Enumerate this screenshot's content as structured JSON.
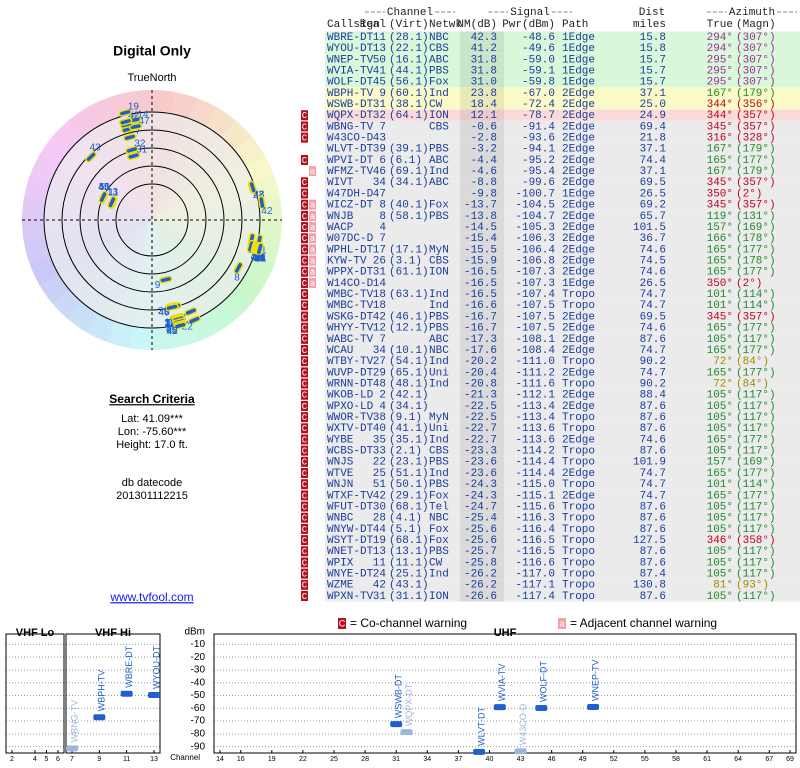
{
  "side": {
    "title": "Digital Only",
    "north": "TrueNorth",
    "criteria_title": "Search Criteria",
    "lat": "Lat: 41.09***",
    "lon": "Lon: -75.60***",
    "height": "Height: 17.0 ft.",
    "datecode_label": "db datecode",
    "datecode": "201301112215",
    "link": "www.tvfool.com"
  },
  "table": {
    "groups": {
      "channel": "Channel",
      "signal": "Signal",
      "dist": "Dist",
      "azimuth": "Azimuth"
    },
    "columns": {
      "callsign": "Callsign",
      "real": "Real",
      "virt": "(Virt)",
      "netwk": "Netwk",
      "nm": "NM(dB)",
      "pwr": "Pwr(dBm)",
      "path": "Path",
      "dist": "miles",
      "true": "True",
      "magn": "(Magn)"
    },
    "rows": [
      {
        "callsign": "WBRE-DT",
        "real": "11",
        "virt": "(28.1)",
        "netwk": "NBC",
        "nm": "42.3",
        "pwr": "-48.6",
        "path": "1Edge",
        "dist": "15.8",
        "true": "294°",
        "magn": "(307°)",
        "color": "#d9f7d9"
      },
      {
        "callsign": "WYOU-DT",
        "real": "13",
        "virt": "(22.1)",
        "netwk": "CBS",
        "nm": "41.2",
        "pwr": "-49.6",
        "path": "1Edge",
        "dist": "15.8",
        "true": "294°",
        "magn": "(307°)",
        "color": "#d9f7d9"
      },
      {
        "callsign": "WNEP-TV",
        "real": "50",
        "virt": "(16.1)",
        "netwk": "ABC",
        "nm": "31.8",
        "pwr": "-59.0",
        "path": "1Edge",
        "dist": "15.7",
        "true": "295°",
        "magn": "(307°)",
        "color": "#d9f7d9"
      },
      {
        "callsign": "WVIA-TV",
        "real": "41",
        "virt": "(44.1)",
        "netwk": "PBS",
        "nm": "31.8",
        "pwr": "-59.1",
        "path": "1Edge",
        "dist": "15.7",
        "true": "295°",
        "magn": "(307°)",
        "color": "#d9f7d9"
      },
      {
        "callsign": "WOLF-DT",
        "real": "45",
        "virt": "(56.1)",
        "netwk": "Fox",
        "nm": "31.0",
        "pwr": "-59.8",
        "path": "1Edge",
        "dist": "15.7",
        "true": "295°",
        "magn": "(307°)",
        "color": "#d9f7d9"
      },
      {
        "callsign": "WBPH-TV",
        "real": "9",
        "virt": "(60.1)",
        "netwk": "Ind",
        "nm": "23.8",
        "pwr": "-67.0",
        "path": "2Edge",
        "dist": "37.1",
        "true": "167°",
        "magn": "(179°)",
        "color": "#fafac8"
      },
      {
        "callsign": "WSWB-DT",
        "real": "31",
        "virt": "(38.1)",
        "netwk": "CW",
        "nm": "18.4",
        "pwr": "-72.4",
        "path": "2Edge",
        "dist": "25.0",
        "true": "344°",
        "magn": "(356°)",
        "color": "#fafac8"
      },
      {
        "warn": [
          "C"
        ],
        "callsign": "WQPX-DT",
        "real": "32",
        "virt": "(64.1)",
        "netwk": "ION",
        "nm": "12.1",
        "pwr": "-78.7",
        "path": "2Edge",
        "dist": "24.9",
        "true": "344°",
        "magn": "(357°)",
        "color": "#fbdada"
      },
      {
        "warn": [
          "C"
        ],
        "callsign": "WBNG-TV",
        "real": "7",
        "netwk": "CBS",
        "nm": "-0.6",
        "pwr": "-91.4",
        "path": "2Edge",
        "dist": "69.4",
        "true": "345°",
        "magn": "(357°)",
        "color": "#ebebeb"
      },
      {
        "warn": [
          "C"
        ],
        "callsign": "W43CO-D",
        "real": "43",
        "nm": "-2.8",
        "pwr": "-93.6",
        "path": "2Edge",
        "dist": "21.8",
        "true": "316°",
        "magn": "(328°)",
        "color": "#ebebeb"
      },
      {
        "callsign": "WLVT-DT",
        "real": "39",
        "virt": "(39.1)",
        "netwk": "PBS",
        "nm": "-3.2",
        "pwr": "-94.1",
        "path": "2Edge",
        "dist": "37.1",
        "true": "167°",
        "magn": "(179°)",
        "color": "#ebebeb"
      },
      {
        "warn": [
          "C"
        ],
        "callsign": "WPVI-DT",
        "real": "6",
        "virt": "(6.1)",
        "netwk": "ABC",
        "nm": "-4.4",
        "pwr": "-95.2",
        "path": "2Edge",
        "dist": "74.4",
        "true": "165°",
        "magn": "(177°)",
        "color": "#ebebeb"
      },
      {
        "warn": [
          "a"
        ],
        "callsign": "WFMZ-TV",
        "real": "46",
        "virt": "(69.1)",
        "netwk": "Ind",
        "nm": "-4.6",
        "pwr": "-95.4",
        "path": "2Edge",
        "dist": "37.1",
        "true": "167°",
        "magn": "(179°)",
        "color": "#ebebeb"
      },
      {
        "warn": [
          "C"
        ],
        "callsign": "WIVT",
        "real": "34",
        "virt": "(34.1)",
        "netwk": "ABC",
        "nm": "-8.8",
        "pwr": "-99.6",
        "path": "2Edge",
        "dist": "69.5",
        "true": "345°",
        "magn": "(357°)",
        "color": "#ebebeb"
      },
      {
        "warn": [
          "C"
        ],
        "callsign": "W47DH-D",
        "real": "47",
        "nm": "-9.8",
        "pwr": "-100.7",
        "path": "1Edge",
        "dist": "26.5",
        "true": "350°",
        "magn": "(2°)",
        "color": "#ebebeb"
      },
      {
        "warn": [
          "C",
          "a"
        ],
        "callsign": "WICZ-DT",
        "real": "8",
        "virt": "(40.1)",
        "netwk": "Fox",
        "nm": "-13.7",
        "pwr": "-104.5",
        "path": "2Edge",
        "dist": "69.2",
        "true": "345°",
        "magn": "(357°)",
        "color": "#ebebeb"
      },
      {
        "warn": [
          "C",
          "a"
        ],
        "callsign": "WNJB",
        "real": "8",
        "virt": "(58.1)",
        "netwk": "PBS",
        "nm": "-13.8",
        "pwr": "-104.7",
        "path": "2Edge",
        "dist": "65.7",
        "true": "119°",
        "magn": "(131°)",
        "color": "#ebebeb"
      },
      {
        "warn": [
          "C",
          "a"
        ],
        "callsign": "WACP",
        "real": "4",
        "nm": "-14.5",
        "pwr": "-105.3",
        "path": "2Edge",
        "dist": "101.5",
        "true": "157°",
        "magn": "(169°)",
        "color": "#ebebeb"
      },
      {
        "warn": [
          "C",
          "a"
        ],
        "callsign": "W07DC-D",
        "real": "7",
        "nm": "-15.4",
        "pwr": "-106.3",
        "path": "2Edge",
        "dist": "36.7",
        "true": "166°",
        "magn": "(178°)",
        "color": "#ebebeb"
      },
      {
        "warn": [
          "C",
          "a"
        ],
        "callsign": "WPHL-DT",
        "real": "17",
        "virt": "(17.1)",
        "netwk": "MyN",
        "nm": "-15.5",
        "pwr": "-106.4",
        "path": "2Edge",
        "dist": "74.6",
        "true": "165°",
        "magn": "(177°)",
        "color": "#ebebeb"
      },
      {
        "warn": [
          "C",
          "a"
        ],
        "callsign": "KYW-TV",
        "real": "26",
        "virt": "(3.1)",
        "netwk": "CBS",
        "nm": "-15.9",
        "pwr": "-106.8",
        "path": "2Edge",
        "dist": "74.5",
        "true": "165°",
        "magn": "(178°)",
        "color": "#ebebeb"
      },
      {
        "warn": [
          "C",
          "a"
        ],
        "callsign": "WPPX-DT",
        "real": "31",
        "virt": "(61.1)",
        "netwk": "ION",
        "nm": "-16.5",
        "pwr": "-107.3",
        "path": "2Edge",
        "dist": "74.6",
        "true": "165°",
        "magn": "(177°)",
        "color": "#ebebeb"
      },
      {
        "warn": [
          "C",
          "a"
        ],
        "callsign": "W14CO-D",
        "real": "14",
        "nm": "-16.5",
        "pwr": "-107.3",
        "path": "1Edge",
        "dist": "26.5",
        "true": "350°",
        "magn": "(2°)",
        "color": "#ebebeb"
      },
      {
        "warn": [
          "C"
        ],
        "callsign": "WMBC-TV",
        "real": "18",
        "virt": "(63.1)",
        "netwk": "Ind",
        "nm": "-16.5",
        "pwr": "-107.4",
        "path": "Tropo",
        "dist": "74.7",
        "true": "101°",
        "magn": "(114°)",
        "color": "#ebebeb"
      },
      {
        "warn": [
          "C"
        ],
        "callsign": "WMBC-TV",
        "real": "18",
        "netwk": "Ind",
        "nm": "-16.6",
        "pwr": "-107.5",
        "path": "Tropo",
        "dist": "74.7",
        "true": "101°",
        "magn": "(114°)",
        "color": "#ebebeb"
      },
      {
        "warn": [
          "C"
        ],
        "callsign": "WSKG-DT",
        "real": "42",
        "virt": "(46.1)",
        "netwk": "PBS",
        "nm": "-16.7",
        "pwr": "-107.5",
        "path": "2Edge",
        "dist": "69.5",
        "true": "345°",
        "magn": "(357°)",
        "color": "#ebebeb"
      },
      {
        "warn": [
          "C"
        ],
        "callsign": "WHYY-TV",
        "real": "12",
        "virt": "(12.1)",
        "netwk": "PBS",
        "nm": "-16.7",
        "pwr": "-107.5",
        "path": "2Edge",
        "dist": "74.6",
        "true": "165°",
        "magn": "(177°)",
        "color": "#ebebeb"
      },
      {
        "warn": [
          "C"
        ],
        "callsign": "WABC-TV",
        "real": "7",
        "netwk": "ABC",
        "nm": "-17.3",
        "pwr": "-108.1",
        "path": "2Edge",
        "dist": "87.6",
        "true": "105°",
        "magn": "(117°)",
        "color": "#ebebeb"
      },
      {
        "warn": [
          "C"
        ],
        "callsign": "WCAU",
        "real": "34",
        "virt": "(10.1)",
        "netwk": "NBC",
        "nm": "-17.6",
        "pwr": "-108.4",
        "path": "2Edge",
        "dist": "74.7",
        "true": "165°",
        "magn": "(177°)",
        "color": "#ebebeb"
      },
      {
        "warn": [
          "C"
        ],
        "callsign": "WTBY-TV",
        "real": "27",
        "virt": "(54.1)",
        "netwk": "Ind",
        "nm": "-20.2",
        "pwr": "-111.0",
        "path": "Tropo",
        "dist": "90.2",
        "true": "72°",
        "magn": "(84°)",
        "color": "#ebebeb"
      },
      {
        "warn": [
          "C"
        ],
        "callsign": "WUVP-DT",
        "real": "29",
        "virt": "(65.1)",
        "netwk": "Uni",
        "nm": "-20.4",
        "pwr": "-111.2",
        "path": "2Edge",
        "dist": "74.7",
        "true": "165°",
        "magn": "(177°)",
        "color": "#ebebeb"
      },
      {
        "warn": [
          "C"
        ],
        "callsign": "WRNN-DT",
        "real": "48",
        "virt": "(48.1)",
        "netwk": "Ind",
        "nm": "-20.8",
        "pwr": "-111.6",
        "path": "Tropo",
        "dist": "90.2",
        "true": "72°",
        "magn": "(84°)",
        "color": "#ebebeb"
      },
      {
        "warn": [
          "C"
        ],
        "callsign": "WKOB-LD",
        "real": "2",
        "virt": "(42.1)",
        "nm": "-21.3",
        "pwr": "-112.1",
        "path": "2Edge",
        "dist": "88.4",
        "true": "105°",
        "magn": "(117°)",
        "color": "#ebebeb"
      },
      {
        "warn": [
          "C"
        ],
        "callsign": "WPXO-LD",
        "real": "4",
        "virt": "(34.1)",
        "nm": "-22.5",
        "pwr": "-113.4",
        "path": "2Edge",
        "dist": "87.6",
        "true": "105°",
        "magn": "(117°)",
        "color": "#ebebeb"
      },
      {
        "warn": [
          "C"
        ],
        "callsign": "WWOR-TV",
        "real": "38",
        "virt": "(9.1)",
        "netwk": "MyN",
        "nm": "-22.5",
        "pwr": "-113.4",
        "path": "Tropo",
        "dist": "87.6",
        "true": "105°",
        "magn": "(117°)",
        "color": "#ebebeb"
      },
      {
        "warn": [
          "C"
        ],
        "callsign": "WXTV-DT",
        "real": "40",
        "virt": "(41.1)",
        "netwk": "Uni",
        "nm": "-22.7",
        "pwr": "-113.6",
        "path": "Tropo",
        "dist": "87.6",
        "true": "105°",
        "magn": "(117°)",
        "color": "#ebebeb"
      },
      {
        "warn": [
          "C"
        ],
        "callsign": "WYBE",
        "real": "35",
        "virt": "(35.1)",
        "netwk": "Ind",
        "nm": "-22.7",
        "pwr": "-113.6",
        "path": "2Edge",
        "dist": "74.6",
        "true": "165°",
        "magn": "(177°)",
        "color": "#ebebeb"
      },
      {
        "warn": [
          "C"
        ],
        "callsign": "WCBS-DT",
        "real": "33",
        "virt": "(2.1)",
        "netwk": "CBS",
        "nm": "-23.3",
        "pwr": "-114.2",
        "path": "Tropo",
        "dist": "87.6",
        "true": "105°",
        "magn": "(117°)",
        "color": "#ebebeb"
      },
      {
        "warn": [
          "C"
        ],
        "callsign": "WNJS",
        "real": "22",
        "virt": "(23.1)",
        "netwk": "PBS",
        "nm": "-23.6",
        "pwr": "-114.4",
        "path": "Tropo",
        "dist": "101.9",
        "true": "157°",
        "magn": "(169°)",
        "color": "#ebebeb"
      },
      {
        "warn": [
          "C"
        ],
        "callsign": "WTVE",
        "real": "25",
        "virt": "(51.1)",
        "netwk": "Ind",
        "nm": "-23.6",
        "pwr": "-114.4",
        "path": "2Edge",
        "dist": "74.7",
        "true": "165°",
        "magn": "(177°)",
        "color": "#ebebeb"
      },
      {
        "warn": [
          "C"
        ],
        "callsign": "WNJN",
        "real": "51",
        "virt": "(50.1)",
        "netwk": "PBS",
        "nm": "-24.3",
        "pwr": "-115.0",
        "path": "Tropo",
        "dist": "74.7",
        "true": "101°",
        "magn": "(114°)",
        "color": "#ebebeb"
      },
      {
        "warn": [
          "C"
        ],
        "callsign": "WTXF-TV",
        "real": "42",
        "virt": "(29.1)",
        "netwk": "Fox",
        "nm": "-24.3",
        "pwr": "-115.1",
        "path": "2Edge",
        "dist": "74.7",
        "true": "165°",
        "magn": "(177°)",
        "color": "#ebebeb"
      },
      {
        "warn": [
          "C"
        ],
        "callsign": "WFUT-DT",
        "real": "30",
        "virt": "(68.1)",
        "netwk": "Tel",
        "nm": "-24.7",
        "pwr": "-115.6",
        "path": "Tropo",
        "dist": "87.6",
        "true": "105°",
        "magn": "(117°)",
        "color": "#ebebeb"
      },
      {
        "warn": [
          "C"
        ],
        "callsign": "WNBC",
        "real": "28",
        "virt": "(4.1)",
        "netwk": "NBC",
        "nm": "-25.4",
        "pwr": "-116.3",
        "path": "Tropo",
        "dist": "87.6",
        "true": "105°",
        "magn": "(117°)",
        "color": "#ebebeb"
      },
      {
        "warn": [
          "C"
        ],
        "callsign": "WNYW-DT",
        "real": "44",
        "virt": "(5.1)",
        "netwk": "Fox",
        "nm": "-25.6",
        "pwr": "-116.4",
        "path": "Tropo",
        "dist": "87.6",
        "true": "105°",
        "magn": "(117°)",
        "color": "#ebebeb"
      },
      {
        "warn": [
          "C"
        ],
        "callsign": "WSYT-DT",
        "real": "19",
        "virt": "(68.1)",
        "netwk": "Fox",
        "nm": "-25.6",
        "pwr": "-116.5",
        "path": "Tropo",
        "dist": "127.5",
        "true": "346°",
        "magn": "(358°)",
        "color": "#ebebeb"
      },
      {
        "warn": [
          "C"
        ],
        "callsign": "WNET-DT",
        "real": "13",
        "virt": "(13.1)",
        "netwk": "PBS",
        "nm": "-25.7",
        "pwr": "-116.5",
        "path": "Tropo",
        "dist": "87.6",
        "true": "105°",
        "magn": "(117°)",
        "color": "#ebebeb"
      },
      {
        "warn": [
          "C"
        ],
        "callsign": "WPIX",
        "real": "11",
        "virt": "(11.1)",
        "netwk": "CW",
        "nm": "-25.8",
        "pwr": "-116.6",
        "path": "Tropo",
        "dist": "87.6",
        "true": "105°",
        "magn": "(117°)",
        "color": "#ebebeb"
      },
      {
        "warn": [
          "C"
        ],
        "callsign": "WNYE-DT",
        "real": "24",
        "virt": "(25.1)",
        "netwk": "Ind",
        "nm": "-26.2",
        "pwr": "-117.0",
        "path": "Tropo",
        "dist": "87.4",
        "true": "105°",
        "magn": "(117°)",
        "color": "#ebebeb"
      },
      {
        "warn": [
          "C"
        ],
        "callsign": "WZME",
        "real": "42",
        "virt": "(43.1)",
        "nm": "-26.2",
        "pwr": "-117.1",
        "path": "Tropo",
        "dist": "130.8",
        "true": "81°",
        "magn": "(93°)",
        "color": "#ebebeb"
      },
      {
        "warn": [
          "C"
        ],
        "callsign": "WPXN-TV",
        "real": "31",
        "virt": "(31.1)",
        "netwk": "ION",
        "nm": "-26.6",
        "pwr": "-117.4",
        "path": "Tropo",
        "dist": "87.6",
        "true": "105°",
        "magn": "(117°)",
        "color": "#ebebeb"
      }
    ]
  },
  "legend": [
    {
      "symbol": "C",
      "text": "= Co-channel warning"
    },
    {
      "symbol": "a",
      "text": "= Adjacent channel warning"
    }
  ],
  "spectrum": {
    "y_label": "dBm",
    "x_label": "Channel",
    "ylim": [
      -95,
      -5
    ],
    "yticks": [
      -10,
      -20,
      -30,
      -40,
      -50,
      -60,
      -70,
      -80,
      -90
    ],
    "bands": [
      {
        "name": "VHF Lo",
        "xlim": [
          2,
          6
        ],
        "xticks": [
          2,
          4,
          5,
          6
        ]
      },
      {
        "name": "VHF Hi",
        "xlim": [
          7,
          13
        ],
        "xticks": [
          7,
          9,
          11,
          13
        ]
      },
      {
        "name": "UHF",
        "xlim": [
          14,
          69
        ],
        "xticks": [
          14,
          16,
          19,
          22,
          25,
          28,
          31,
          34,
          37,
          40,
          43,
          46,
          49,
          52,
          55,
          58,
          61,
          64,
          67,
          69
        ]
      }
    ]
  }
}
